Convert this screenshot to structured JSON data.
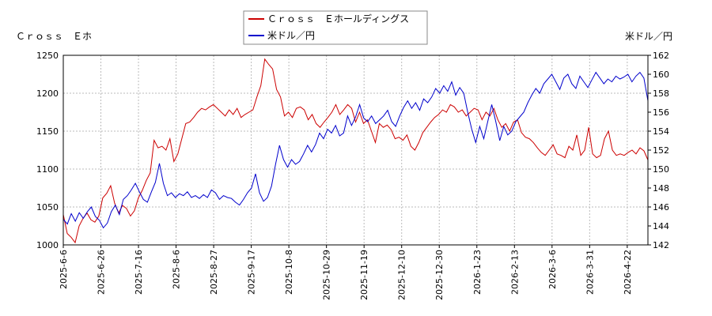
{
  "chart_data": {
    "type": "line",
    "grid": true,
    "legend_position": "top-center",
    "left_axis_label": "Ｃｒｏｓｓ　Ｅホ",
    "right_axis_label": "米ドル／円",
    "left_ylim": [
      1000,
      1250
    ],
    "left_yticks": [
      "1000",
      "1050",
      "1100",
      "1150",
      "1200",
      "1250"
    ],
    "right_ylim": [
      142,
      162
    ],
    "right_yticks": [
      "142",
      "144",
      "146",
      "148",
      "150",
      "152",
      "154",
      "156",
      "158",
      "160",
      "162"
    ],
    "x_ticks": [
      "2025-6-6",
      "2025-6-26",
      "2025-7-16",
      "2025-8-6",
      "2025-8-27",
      "2025-9-17",
      "2025-10-8",
      "2025-10-29",
      "2025-11-19",
      "2025-12-10",
      "2025-12-30",
      "2026-1-23",
      "2026-2-13",
      "2026-3-6",
      "2026-3-31",
      "2026-4-22"
    ],
    "series": [
      {
        "name": "Ｃｒｏｓｓ　Ｅホールディングス",
        "axis": "left",
        "color": "#cc0000",
        "values": [
          1040,
          1015,
          1010,
          1003,
          1025,
          1035,
          1042,
          1033,
          1030,
          1038,
          1062,
          1068,
          1078,
          1055,
          1042,
          1052,
          1048,
          1038,
          1045,
          1062,
          1072,
          1085,
          1095,
          1138,
          1128,
          1130,
          1125,
          1140,
          1110,
          1120,
          1140,
          1160,
          1162,
          1168,
          1175,
          1180,
          1178,
          1182,
          1185,
          1180,
          1175,
          1170,
          1178,
          1172,
          1180,
          1168,
          1172,
          1175,
          1178,
          1195,
          1210,
          1245,
          1238,
          1232,
          1205,
          1195,
          1170,
          1175,
          1168,
          1180,
          1182,
          1178,
          1165,
          1172,
          1160,
          1155,
          1162,
          1168,
          1175,
          1185,
          1172,
          1178,
          1185,
          1180,
          1162,
          1175,
          1160,
          1165,
          1150,
          1135,
          1160,
          1155,
          1158,
          1152,
          1140,
          1142,
          1138,
          1145,
          1130,
          1125,
          1135,
          1148,
          1155,
          1162,
          1168,
          1172,
          1178,
          1175,
          1185,
          1182,
          1175,
          1178,
          1170,
          1175,
          1180,
          1178,
          1165,
          1175,
          1170,
          1180,
          1165,
          1155,
          1160,
          1150,
          1162,
          1165,
          1148,
          1142,
          1140,
          1135,
          1128,
          1122,
          1118,
          1125,
          1132,
          1120,
          1118,
          1115,
          1130,
          1125,
          1145,
          1118,
          1125,
          1155,
          1120,
          1115,
          1118,
          1140,
          1150,
          1125,
          1118,
          1120,
          1118,
          1122,
          1125,
          1120,
          1128,
          1124,
          1112
        ]
      },
      {
        "name": "米ドル／円",
        "axis": "right",
        "color": "#0000cc",
        "values": [
          144.7,
          144.2,
          145.3,
          144.5,
          145.4,
          144.8,
          145.5,
          146.0,
          145.0,
          144.6,
          143.8,
          144.3,
          145.5,
          146.2,
          145.2,
          146.8,
          147.2,
          147.8,
          148.5,
          147.6,
          146.8,
          146.5,
          147.6,
          148.6,
          150.6,
          148.5,
          147.2,
          147.5,
          147.0,
          147.4,
          147.2,
          147.6,
          147.0,
          147.2,
          146.9,
          147.3,
          147.0,
          147.8,
          147.5,
          146.8,
          147.2,
          147.0,
          146.9,
          146.5,
          146.2,
          146.8,
          147.5,
          148.0,
          149.5,
          147.5,
          146.6,
          147.0,
          148.2,
          150.5,
          152.5,
          151.0,
          150.2,
          151.0,
          150.5,
          150.8,
          151.6,
          152.5,
          151.8,
          152.6,
          153.8,
          153.2,
          154.2,
          153.8,
          154.6,
          153.5,
          153.8,
          155.6,
          154.6,
          155.5,
          156.8,
          155.4,
          155.0,
          155.6,
          154.8,
          155.2,
          155.6,
          156.2,
          155.0,
          154.5,
          155.6,
          156.5,
          157.2,
          156.4,
          157.0,
          156.2,
          157.4,
          157.0,
          157.6,
          158.5,
          158.0,
          158.8,
          158.2,
          159.2,
          157.8,
          158.6,
          158.0,
          156.0,
          154.2,
          152.8,
          154.5,
          153.2,
          155.0,
          156.8,
          155.0,
          153.0,
          154.5,
          153.6,
          154.0,
          155.0,
          155.5,
          156.0,
          157.0,
          157.8,
          158.5,
          158.0,
          159.0,
          159.5,
          160.0,
          159.2,
          158.4,
          159.6,
          160.0,
          159.0,
          158.5,
          159.8,
          159.2,
          158.6,
          159.4,
          160.2,
          159.6,
          159.0,
          159.5,
          159.2,
          159.8,
          159.5,
          159.7,
          160.0,
          159.2,
          159.8,
          160.2,
          159.6,
          157.2
        ]
      }
    ]
  }
}
